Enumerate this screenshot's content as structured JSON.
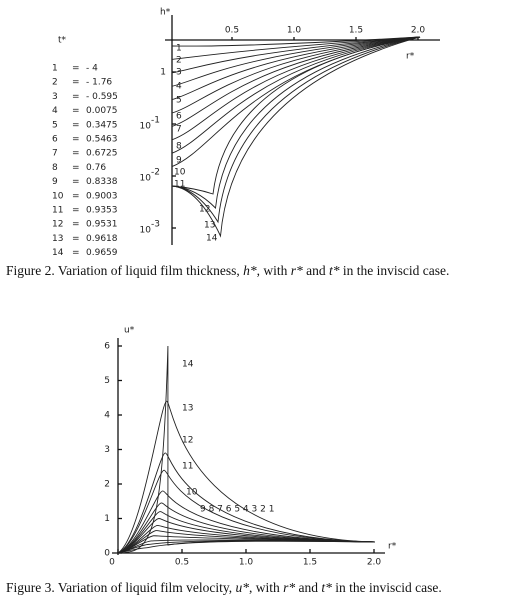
{
  "figure2": {
    "y_label": "h*",
    "x_label": "r*",
    "xticks": [
      0.5,
      {
        "value": 1,
        "label": "1.0"
      },
      1.5,
      {
        "value": 2,
        "label": "2.0"
      }
    ],
    "yticks": [
      {
        "value": 1,
        "label": "1"
      },
      {
        "value": 0.1,
        "base": "10",
        "exponent": "-1"
      },
      {
        "value": 0.01,
        "base": "10",
        "exponent": "-2"
      },
      {
        "value": 0.001,
        "base": "10",
        "exponent": "-3"
      }
    ],
    "curve_labels": [
      "1",
      "2",
      "3",
      "4",
      "5",
      "6",
      "7",
      "8",
      "9",
      "10",
      "11",
      "12",
      "13",
      "14"
    ],
    "legend": {
      "title": "t*",
      "rows": [
        [
          "1",
          "=",
          "- 4"
        ],
        [
          "2",
          "=",
          "- 1.76"
        ],
        [
          "3",
          "=",
          "- 0.595"
        ],
        [
          "4",
          "=",
          "0.0075"
        ],
        [
          "5",
          "=",
          "0.3475"
        ],
        [
          "6",
          "=",
          "0.5463"
        ],
        [
          "7",
          "=",
          "0.6725"
        ],
        [
          "8",
          "=",
          "0.76"
        ],
        [
          "9",
          "=",
          "0.8338"
        ],
        [
          "10",
          "=",
          "0.9003"
        ],
        [
          "11",
          "=",
          "0.9353"
        ],
        [
          "12",
          "=",
          "0.9531"
        ],
        [
          "13",
          "=",
          "0.9618"
        ],
        [
          "14",
          "=",
          "0.9659"
        ]
      ]
    },
    "caption": [
      "Figure 2. Variation of liquid film thickness, ",
      "h*",
      ", with ",
      "r*",
      " and ",
      "t*",
      " in the inviscid case."
    ]
  },
  "figure3": {
    "y_label": "u*",
    "x_label": "r*",
    "yticks": [
      0,
      1,
      2,
      3,
      4,
      5,
      6
    ],
    "xticks": [
      0,
      0.5,
      {
        "value": 1,
        "label": "1.0"
      },
      1.5,
      {
        "value": 2,
        "label": "2.0"
      }
    ],
    "curve_labels": [
      "14",
      "13",
      "12",
      "11",
      "10",
      "9 8 7 6 5 4 3 2 1"
    ],
    "caption": [
      "Figure 3. Variation of liquid film velocity, ",
      "u*",
      ", with ",
      "r*",
      " and ",
      "t*",
      " in the inviscid case."
    ]
  }
}
